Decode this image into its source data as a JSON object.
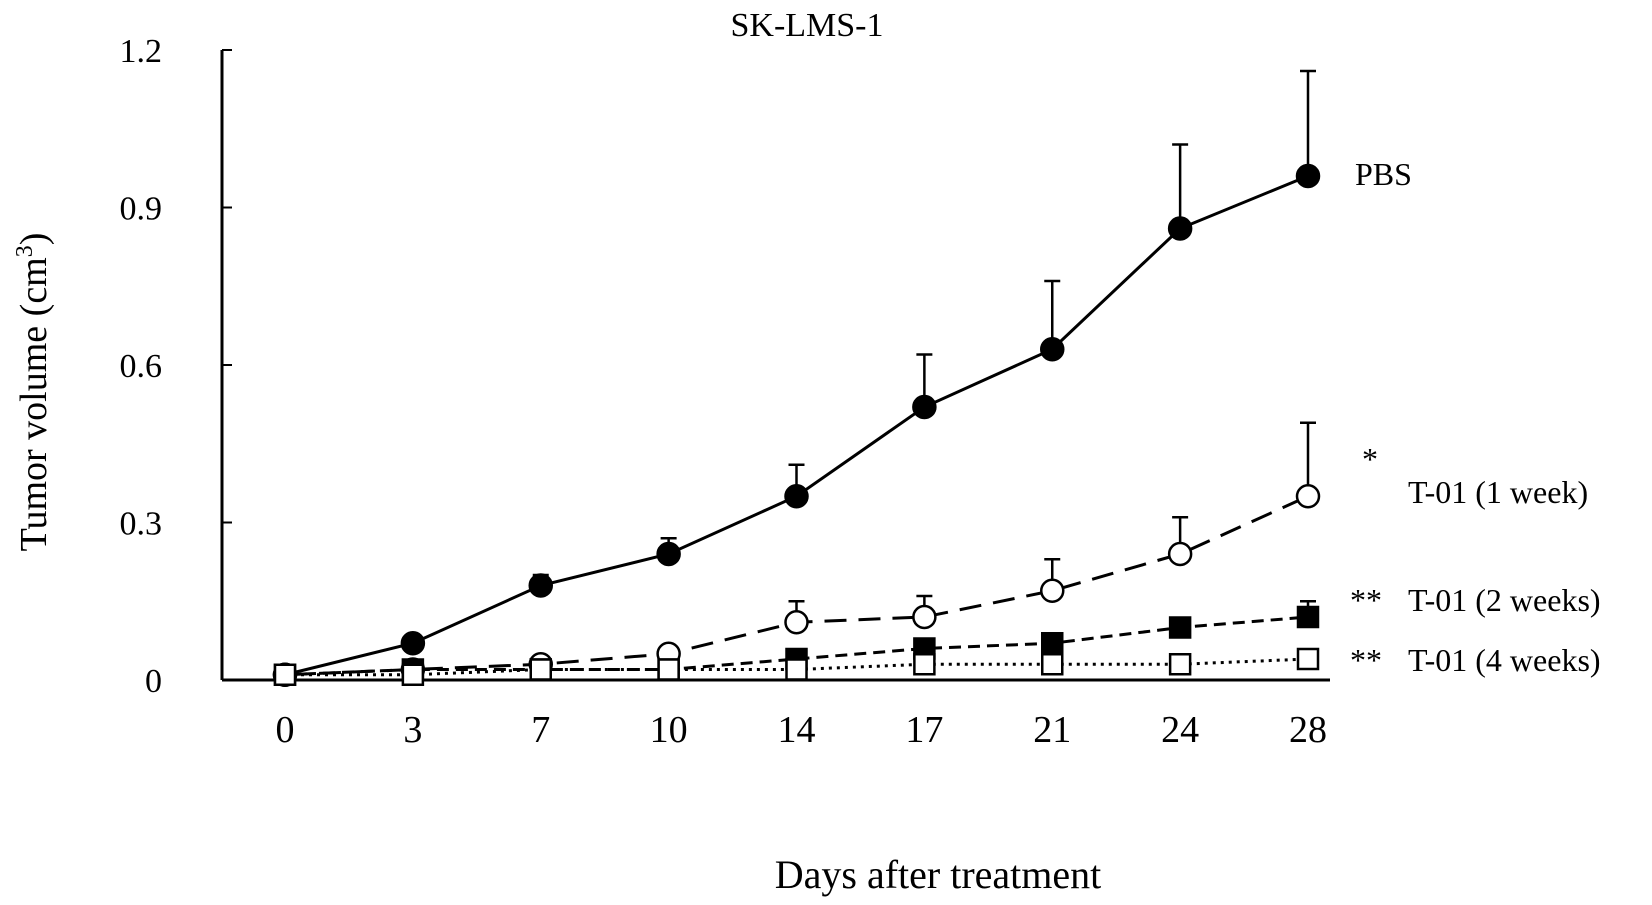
{
  "chart_data": {
    "type": "line",
    "title": "SK-LMS-1",
    "xlabel": "Days after treatment",
    "ylabel": "Tumor volume (cm",
    "ylabel_sup": "3",
    "ylabel_close": ")",
    "ylim": [
      0,
      1.2
    ],
    "yticks": [
      "0",
      "0.3",
      "0.6",
      "0.9",
      "1.2"
    ],
    "ytick_values": [
      0,
      0.3,
      0.6,
      0.9,
      1.2
    ],
    "x": [
      0,
      3,
      7,
      10,
      14,
      17,
      21,
      24,
      28
    ],
    "xtick_labels": [
      "0",
      "3",
      "7",
      "10",
      "14",
      "17",
      "21",
      "24",
      "28"
    ],
    "grid": false,
    "legend": "inline-right",
    "series": [
      {
        "name": "PBS",
        "sig": "",
        "marker": "filled-circle",
        "line": "solid",
        "values": [
          0.01,
          0.07,
          0.18,
          0.24,
          0.35,
          0.52,
          0.63,
          0.86,
          0.96
        ],
        "err_upper": [
          0.01,
          0.08,
          0.2,
          0.27,
          0.41,
          0.62,
          0.76,
          1.02,
          1.16
        ]
      },
      {
        "name": "T-01 (1 week)",
        "sig": "*",
        "marker": "open-circle",
        "line": "dashed",
        "values": [
          0.01,
          0.02,
          0.03,
          0.05,
          0.11,
          0.12,
          0.17,
          0.24,
          0.35
        ],
        "err_upper": [
          0.01,
          0.02,
          0.03,
          0.05,
          0.15,
          0.16,
          0.23,
          0.31,
          0.49
        ]
      },
      {
        "name": "T-01 (2 weeks)",
        "sig": "**",
        "marker": "filled-square",
        "line": "short-dashed",
        "values": [
          0.01,
          0.02,
          0.02,
          0.02,
          0.04,
          0.06,
          0.07,
          0.1,
          0.12
        ],
        "err_upper": [
          0.01,
          0.02,
          0.02,
          0.02,
          0.04,
          0.06,
          0.07,
          0.1,
          0.15
        ]
      },
      {
        "name": "T-01 (4 weeks)",
        "sig": "**",
        "marker": "open-square",
        "line": "dotted",
        "values": [
          0.01,
          0.01,
          0.02,
          0.02,
          0.02,
          0.03,
          0.03,
          0.03,
          0.04
        ],
        "err_upper": [
          0.01,
          0.01,
          0.02,
          0.02,
          0.02,
          0.03,
          0.03,
          0.03,
          0.04
        ]
      }
    ]
  }
}
